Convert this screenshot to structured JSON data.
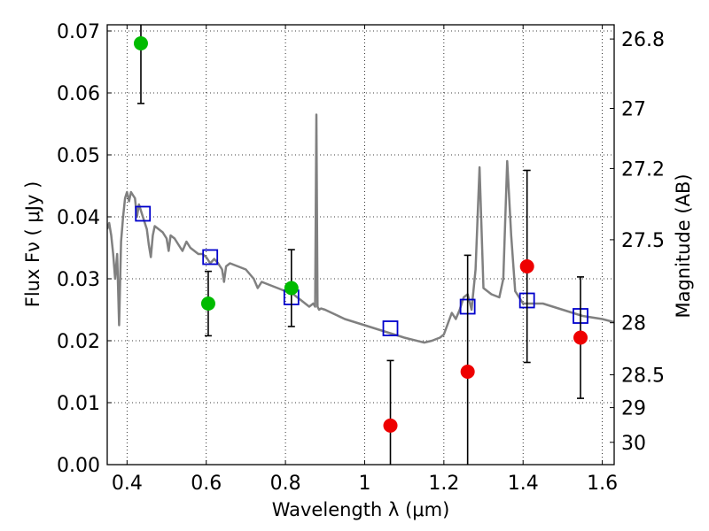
{
  "chart_data": {
    "type": "scatter",
    "xlabel": "Wavelength  λ (μm)",
    "ylabel": "Flux  Fν  ( μJy )",
    "ylabel_right": "Magnitude (AB)",
    "xlim": [
      0.35,
      1.63
    ],
    "ylim": [
      0.0,
      0.071
    ],
    "grid": true,
    "x_ticks": [
      0.4,
      0.6,
      0.8,
      1.0,
      1.2,
      1.4,
      1.6
    ],
    "x_tick_labels": [
      "0.4",
      "0.6",
      "0.8",
      "1",
      "1.2",
      "1.4",
      "1.6"
    ],
    "y_ticks": [
      0.0,
      0.01,
      0.02,
      0.03,
      0.04,
      0.05,
      0.06,
      0.07
    ],
    "y_tick_labels": [
      "0.00",
      "0.01",
      "0.02",
      "0.03",
      "0.04",
      "0.05",
      "0.06",
      "0.07"
    ],
    "right_ticks": [
      {
        "label": "26.8",
        "flux": 0.0687
      },
      {
        "label": "27",
        "flux": 0.0575
      },
      {
        "label": "27.2",
        "flux": 0.0478
      },
      {
        "label": "27.5",
        "flux": 0.0363
      },
      {
        "label": "28",
        "flux": 0.0229
      },
      {
        "label": "28.5",
        "flux": 0.0145
      },
      {
        "label": "29",
        "flux": 0.0092
      },
      {
        "label": "30",
        "flux": 0.0036
      }
    ],
    "series": [
      {
        "kind": "line",
        "color": "#808080",
        "x": [
          0.35,
          0.355,
          0.36,
          0.365,
          0.37,
          0.375,
          0.38,
          0.385,
          0.39,
          0.395,
          0.4,
          0.405,
          0.41,
          0.415,
          0.42,
          0.425,
          0.43,
          0.44,
          0.45,
          0.455,
          0.46,
          0.465,
          0.47,
          0.48,
          0.49,
          0.5,
          0.505,
          0.51,
          0.52,
          0.53,
          0.54,
          0.55,
          0.56,
          0.57,
          0.58,
          0.59,
          0.6,
          0.61,
          0.62,
          0.63,
          0.64,
          0.645,
          0.65,
          0.66,
          0.68,
          0.7,
          0.72,
          0.73,
          0.74,
          0.76,
          0.78,
          0.8,
          0.82,
          0.84,
          0.86,
          0.87,
          0.875,
          0.878,
          0.881,
          0.885,
          0.89,
          0.9,
          0.95,
          1.0,
          1.05,
          1.1,
          1.15,
          1.17,
          1.19,
          1.2,
          1.22,
          1.23,
          1.24,
          1.25,
          1.26,
          1.27,
          1.28,
          1.29,
          1.3,
          1.32,
          1.34,
          1.35,
          1.36,
          1.37,
          1.38,
          1.39,
          1.4,
          1.45,
          1.5,
          1.55,
          1.6,
          1.63
        ],
        "y": [
          0.038,
          0.039,
          0.037,
          0.034,
          0.03,
          0.034,
          0.0225,
          0.036,
          0.04,
          0.043,
          0.044,
          0.0425,
          0.044,
          0.0435,
          0.043,
          0.04,
          0.042,
          0.04,
          0.038,
          0.0355,
          0.0335,
          0.037,
          0.0385,
          0.038,
          0.0375,
          0.0365,
          0.0345,
          0.037,
          0.0365,
          0.0355,
          0.0345,
          0.036,
          0.035,
          0.0345,
          0.034,
          0.034,
          0.0335,
          0.0325,
          0.0332,
          0.0325,
          0.0315,
          0.0295,
          0.032,
          0.0325,
          0.032,
          0.0315,
          0.03,
          0.0285,
          0.0295,
          0.029,
          0.0285,
          0.028,
          0.0275,
          0.0265,
          0.0255,
          0.026,
          0.0255,
          0.0565,
          0.0255,
          0.025,
          0.0252,
          0.025,
          0.0235,
          0.0225,
          0.0215,
          0.0205,
          0.0197,
          0.02,
          0.0205,
          0.021,
          0.0245,
          0.0235,
          0.025,
          0.027,
          0.0275,
          0.025,
          0.0315,
          0.048,
          0.0285,
          0.0275,
          0.027,
          0.03,
          0.049,
          0.037,
          0.028,
          0.027,
          0.026,
          0.026,
          0.025,
          0.024,
          0.0235,
          0.023
        ]
      },
      {
        "kind": "model",
        "color": "#0000cc",
        "x": [
          0.44,
          0.61,
          0.815,
          1.065,
          1.26,
          1.41,
          1.545
        ],
        "y": [
          0.0405,
          0.0335,
          0.027,
          0.022,
          0.0255,
          0.0265,
          0.024
        ]
      },
      {
        "kind": "points",
        "color": "#00bb00",
        "x": [
          0.435,
          0.605,
          0.815
        ],
        "y": [
          0.068,
          0.026,
          0.0285
        ],
        "err": [
          0.0097,
          0.0052,
          0.0062
        ]
      },
      {
        "kind": "points",
        "color": "#ee0000",
        "x": [
          1.065,
          1.26,
          1.41,
          1.545
        ],
        "y": [
          0.0063,
          0.015,
          0.032,
          0.0205
        ],
        "err": [
          0.0105,
          0.0188,
          0.0155,
          0.0098
        ]
      }
    ]
  }
}
